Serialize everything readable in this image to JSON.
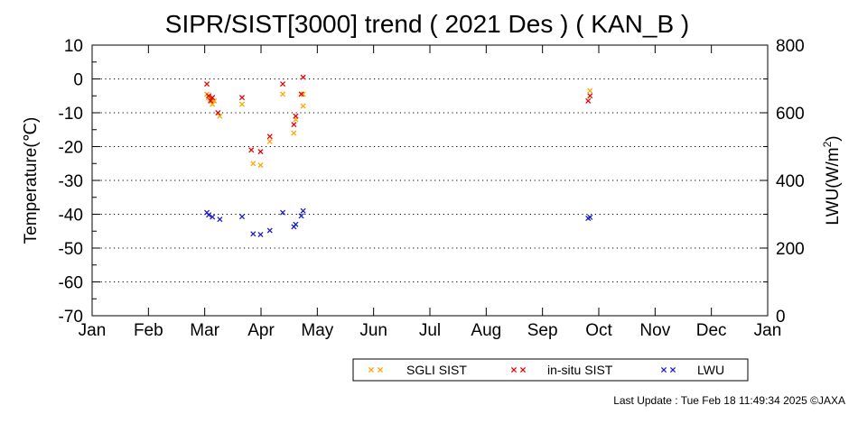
{
  "chart_data": {
    "type": "scatter",
    "title": "SIPR/SIST[3000] trend ( 2021 Des ) ( KAN_B )",
    "ylabel": "Temperature(℃)",
    "y2label": "LWU(W/m²)",
    "ylim": [
      -70,
      10
    ],
    "y2lim": [
      0,
      800
    ],
    "yticks": [
      "10",
      "0",
      "-10",
      "-20",
      "-30",
      "-40",
      "-50",
      "-60",
      "-70"
    ],
    "y2ticks": [
      "800",
      "600",
      "400",
      "200",
      "0"
    ],
    "xticks": [
      "Jan",
      "Feb",
      "Mar",
      "Apr",
      "May",
      "Jun",
      "Jul",
      "Aug",
      "Sep",
      "Oct",
      "Nov",
      "Dec",
      "Jan"
    ],
    "grid": "horizontal dotted",
    "legend_position": "bottom",
    "series": [
      {
        "name": "SGLI SIST",
        "axis": "left",
        "color": "#ffa500",
        "points": [
          [
            62,
            -4.5
          ],
          [
            63,
            -5.5
          ],
          [
            64,
            -6
          ],
          [
            65,
            -7.5
          ],
          [
            66,
            -6.5
          ],
          [
            69,
            -11
          ],
          [
            81,
            -7.5
          ],
          [
            87,
            -25
          ],
          [
            91,
            -25.5
          ],
          [
            96,
            -18.5
          ],
          [
            103,
            -4.5
          ],
          [
            109,
            -16
          ],
          [
            110,
            -12
          ],
          [
            114,
            -8
          ],
          [
            114,
            -4.5
          ],
          [
            269,
            -3.5
          ]
        ]
      },
      {
        "name": "in-situ SIST",
        "axis": "left",
        "color": "#e80000",
        "points": [
          [
            62,
            -1.5
          ],
          [
            63,
            -5
          ],
          [
            64,
            -6.5
          ],
          [
            65,
            -5.5
          ],
          [
            68,
            -10
          ],
          [
            81,
            -5.5
          ],
          [
            86,
            -21
          ],
          [
            91,
            -21.5
          ],
          [
            96,
            -17
          ],
          [
            103,
            -1.5
          ],
          [
            109,
            -13.5
          ],
          [
            110,
            -11
          ],
          [
            113,
            -4.5
          ],
          [
            114,
            0.5
          ],
          [
            268,
            -6.5
          ],
          [
            269,
            -5
          ]
        ]
      },
      {
        "name": "LWU",
        "axis": "right",
        "color": "#1a1acc",
        "points": [
          [
            62,
            305
          ],
          [
            63,
            298
          ],
          [
            65,
            292
          ],
          [
            69,
            285
          ],
          [
            81,
            293
          ],
          [
            87,
            242
          ],
          [
            91,
            240
          ],
          [
            96,
            252
          ],
          [
            103,
            305
          ],
          [
            109,
            263
          ],
          [
            110,
            270
          ],
          [
            113,
            295
          ],
          [
            114,
            310
          ],
          [
            268,
            288
          ],
          [
            269,
            291
          ]
        ]
      }
    ]
  },
  "footer": "Last Update : Tue Feb 18 11:49:34 2025  ©JAXA"
}
